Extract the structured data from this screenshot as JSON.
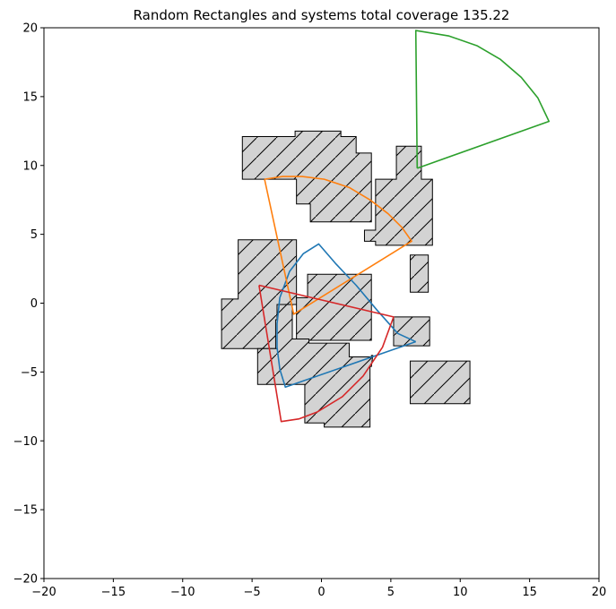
{
  "chart_data": {
    "type": "polygon-plot",
    "title": "Random Rectangles and systems total coverage 135.22",
    "xlim": [
      -20,
      20
    ],
    "ylim": [
      -20,
      20
    ],
    "xticks": [
      -20,
      -15,
      -10,
      -5,
      0,
      5,
      10,
      15,
      20
    ],
    "yticks": [
      -20,
      -15,
      -10,
      -5,
      0,
      5,
      10,
      15,
      20
    ],
    "xtick_labels": [
      "−20",
      "−15",
      "−10",
      "−5",
      "0",
      "5",
      "10",
      "15",
      "20"
    ],
    "ytick_labels": [
      "−20",
      "−15",
      "−10",
      "−5",
      "0",
      "5",
      "10",
      "15",
      "20"
    ],
    "grid": false,
    "obstacle_fill": "#d3d3d3",
    "obstacle_edge": "#000000",
    "obstacles": [
      [
        [
          -5.7,
          12.1
        ],
        [
          -1.9,
          12.1
        ],
        [
          -1.9,
          12.5
        ],
        [
          1.4,
          12.5
        ],
        [
          1.4,
          12.1
        ],
        [
          2.5,
          12.1
        ],
        [
          2.5,
          10.9
        ],
        [
          3.6,
          10.9
        ],
        [
          3.6,
          5.9
        ],
        [
          -0.8,
          5.9
        ],
        [
          -0.8,
          7.2
        ],
        [
          -1.8,
          7.2
        ],
        [
          -1.8,
          9.0
        ],
        [
          -5.7,
          9.0
        ]
      ],
      [
        [
          5.4,
          11.4
        ],
        [
          7.2,
          11.4
        ],
        [
          7.2,
          9.0
        ],
        [
          8.0,
          9.0
        ],
        [
          8.0,
          4.2
        ],
        [
          3.9,
          4.2
        ],
        [
          3.9,
          4.5
        ],
        [
          3.1,
          4.5
        ],
        [
          3.1,
          5.3
        ],
        [
          3.9,
          5.3
        ],
        [
          3.9,
          9.0
        ],
        [
          5.4,
          9.0
        ]
      ],
      [
        [
          6.4,
          3.5
        ],
        [
          7.7,
          3.5
        ],
        [
          7.7,
          0.8
        ],
        [
          6.4,
          0.8
        ]
      ],
      [
        [
          -6.0,
          4.6
        ],
        [
          -1.8,
          4.6
        ],
        [
          -1.8,
          0.3
        ],
        [
          -1.0,
          0.3
        ],
        [
          -1.0,
          -0.1
        ],
        [
          -2.1,
          -0.1
        ],
        [
          -2.1,
          -1.2
        ],
        [
          -3.3,
          -1.2
        ],
        [
          -3.3,
          -3.3
        ],
        [
          -7.2,
          -3.3
        ],
        [
          -7.2,
          0.3
        ],
        [
          -6.0,
          0.3
        ]
      ],
      [
        [
          -1.0,
          2.1
        ],
        [
          3.6,
          2.1
        ],
        [
          3.6,
          -2.7
        ],
        [
          -0.9,
          -2.7
        ],
        [
          -0.9,
          -2.6
        ],
        [
          -1.8,
          -2.6
        ],
        [
          -1.8,
          0.4
        ],
        [
          -1.0,
          0.4
        ]
      ],
      [
        [
          5.2,
          -1.0
        ],
        [
          7.8,
          -1.0
        ],
        [
          7.8,
          -3.1
        ],
        [
          5.2,
          -3.1
        ]
      ],
      [
        [
          -3.2,
          -0.1
        ],
        [
          -2.1,
          -0.1
        ],
        [
          -2.1,
          -2.6
        ],
        [
          -0.9,
          -2.6
        ],
        [
          -0.9,
          -2.9
        ],
        [
          2.0,
          -2.9
        ],
        [
          2.0,
          -3.9
        ],
        [
          3.1,
          -3.9
        ],
        [
          3.1,
          -3.9
        ],
        [
          3.6,
          -3.9
        ],
        [
          3.6,
          -3.8
        ],
        [
          3.7,
          -3.8
        ],
        [
          3.6,
          -4.6
        ],
        [
          3.5,
          -4.6
        ],
        [
          3.5,
          -9.0
        ],
        [
          0.2,
          -9.0
        ],
        [
          0.2,
          -8.7
        ],
        [
          -1.2,
          -8.7
        ],
        [
          -1.2,
          -5.9
        ],
        [
          -2.3,
          -5.9
        ],
        [
          -4.6,
          -5.9
        ],
        [
          -4.6,
          -3.3
        ],
        [
          -3.2,
          -3.3
        ]
      ],
      [
        [
          6.4,
          -4.2
        ],
        [
          10.7,
          -4.2
        ],
        [
          10.7,
          -7.3
        ],
        [
          6.4,
          -7.3
        ]
      ]
    ],
    "series": [
      {
        "color": "#1f77b4",
        "points": [
          [
            6.8,
            -2.8
          ],
          [
            5.5,
            -2.2
          ],
          [
            4.0,
            -0.5
          ],
          [
            2.5,
            1.3
          ],
          [
            1.0,
            2.9
          ],
          [
            -0.2,
            4.3
          ],
          [
            -1.3,
            3.6
          ],
          [
            -2.3,
            2.3
          ],
          [
            -3.0,
            0.4
          ],
          [
            -3.2,
            -1.5
          ],
          [
            -3.2,
            -3.2
          ],
          [
            -3.0,
            -4.8
          ],
          [
            -2.6,
            -6.1
          ],
          [
            6.8,
            -2.8
          ]
        ]
      },
      {
        "color": "#ff7f0e",
        "points": [
          [
            -4.1,
            9.0
          ],
          [
            -2.8,
            9.2
          ],
          [
            -1.4,
            9.2
          ],
          [
            0.2,
            9.0
          ],
          [
            2.0,
            8.4
          ],
          [
            3.5,
            7.5
          ],
          [
            4.8,
            6.5
          ],
          [
            5.8,
            5.5
          ],
          [
            6.5,
            4.5
          ],
          [
            -2.0,
            -0.8
          ],
          [
            -4.1,
            9.0
          ]
        ]
      },
      {
        "color": "#2ca02c",
        "points": [
          [
            6.9,
            9.8
          ],
          [
            16.4,
            13.2
          ],
          [
            15.6,
            14.9
          ],
          [
            14.4,
            16.4
          ],
          [
            12.9,
            17.7
          ],
          [
            11.2,
            18.7
          ],
          [
            9.2,
            19.4
          ],
          [
            6.8,
            19.8
          ],
          [
            6.9,
            9.8
          ]
        ]
      },
      {
        "color": "#d62728",
        "points": [
          [
            -4.5,
            1.3
          ],
          [
            5.2,
            -1.0
          ],
          [
            4.4,
            -3.2
          ],
          [
            3.0,
            -5.3
          ],
          [
            1.5,
            -6.8
          ],
          [
            -0.3,
            -7.9
          ],
          [
            -1.6,
            -8.4
          ],
          [
            -2.9,
            -8.6
          ],
          [
            -4.5,
            1.3
          ]
        ]
      }
    ]
  }
}
